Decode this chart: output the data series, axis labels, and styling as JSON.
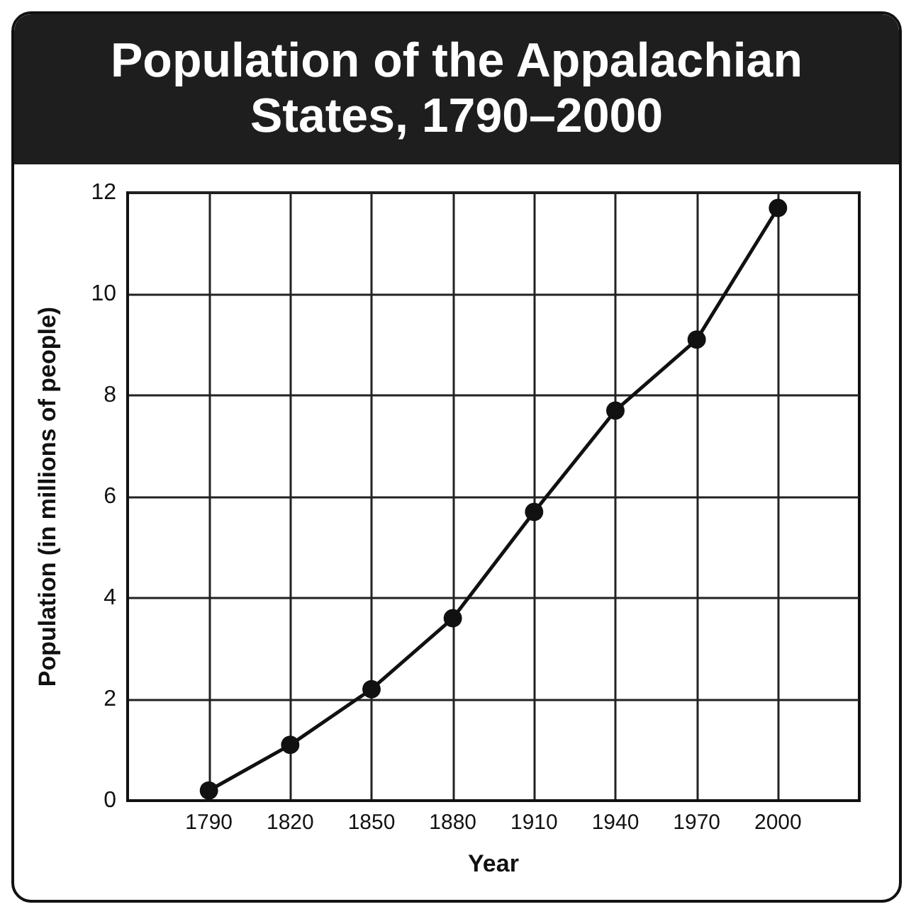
{
  "chart_data": {
    "type": "line",
    "title": "Population of the Appalachian States, 1790–2000",
    "xlabel": "Year",
    "ylabel": "Population (in millions of people)",
    "x": [
      1790,
      1820,
      1850,
      1880,
      1910,
      1940,
      1970,
      2000
    ],
    "series": [
      {
        "color": "#111111",
        "values": [
          0.2,
          1.1,
          2.2,
          3.6,
          5.7,
          7.7,
          9.1,
          11.7
        ]
      }
    ],
    "xlim": [
      1760,
      2030
    ],
    "xticks": [
      1790,
      1820,
      1850,
      1880,
      1910,
      1940,
      1970,
      2000
    ],
    "ylim": [
      0,
      12
    ],
    "yticks": [
      0,
      2,
      4,
      6,
      8,
      10,
      12
    ],
    "grid": true,
    "marker": "circle",
    "line_style": "solid"
  }
}
